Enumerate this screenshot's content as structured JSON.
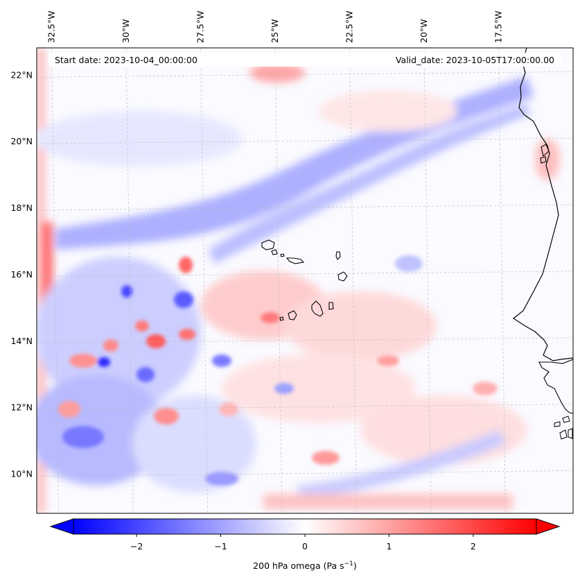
{
  "header": {
    "start_date": "Start date: 2023-10-04_00:00:00",
    "valid_date": "Valid_date: 2023-10-05T17:00:00.00"
  },
  "chart_data": {
    "type": "heatmap",
    "title": "",
    "variable": "200 hPa omega",
    "units": "Pa s",
    "units_exponent": "−1",
    "xlim": [
      -33.0,
      -15.0
    ],
    "ylim": [
      8.8,
      22.8
    ],
    "lon_ticks": [
      {
        "value": -32.5,
        "label": "32.5°W"
      },
      {
        "value": -30.0,
        "label": "30°W"
      },
      {
        "value": -27.5,
        "label": "27.5°W"
      },
      {
        "value": -25.0,
        "label": "25°W"
      },
      {
        "value": -22.5,
        "label": "22.5°W"
      },
      {
        "value": -20.0,
        "label": "20°W"
      },
      {
        "value": -17.5,
        "label": "17.5°W"
      }
    ],
    "lat_ticks": [
      {
        "value": 10,
        "label": "10°N"
      },
      {
        "value": 12,
        "label": "12°N"
      },
      {
        "value": 14,
        "label": "14°N"
      },
      {
        "value": 16,
        "label": "16°N"
      },
      {
        "value": 18,
        "label": "18°N"
      },
      {
        "value": 20,
        "label": "20°N"
      },
      {
        "value": 22,
        "label": "22°N"
      }
    ],
    "grid": true,
    "colormap": "bwr",
    "colormap_colors": {
      "low": "#0000ff",
      "mid": "#ffffff",
      "high": "#ff0000"
    },
    "colorbar": {
      "vmin": -2.75,
      "vmax": 2.75,
      "extend": "both",
      "location": "bottom",
      "ticks": [
        {
          "value": -2,
          "label": "−2"
        },
        {
          "value": -1,
          "label": "−1"
        },
        {
          "value": 0,
          "label": "0"
        },
        {
          "value": 1,
          "label": "1"
        },
        {
          "value": 2,
          "label": "2"
        }
      ]
    },
    "features": [
      {
        "name": "coastline-west-africa",
        "type": "line"
      },
      {
        "name": "cape-verde-islands",
        "type": "islands"
      }
    ]
  }
}
